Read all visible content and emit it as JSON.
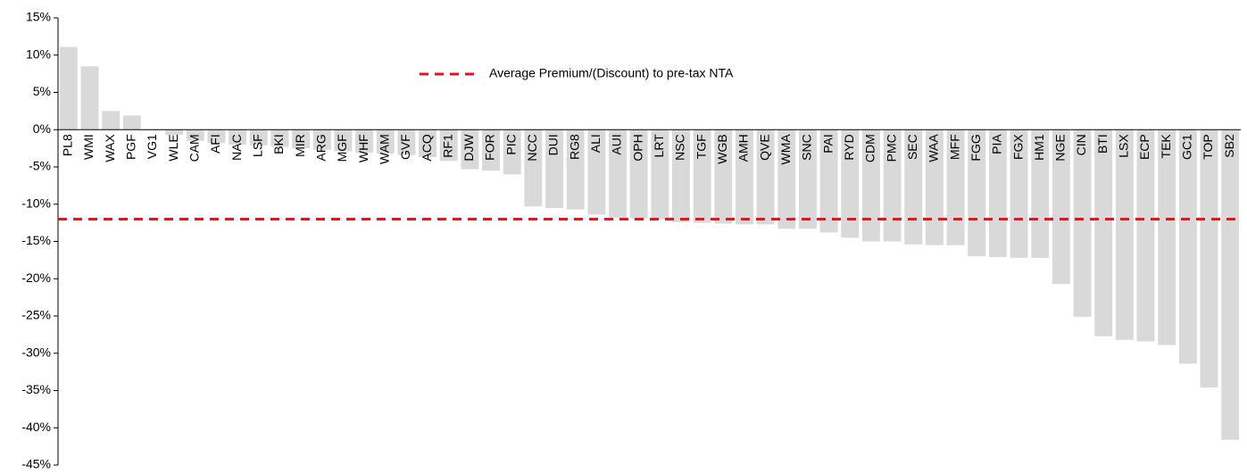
{
  "chart_data": {
    "type": "bar",
    "categories": [
      "PL8",
      "WMI",
      "WAX",
      "PGF",
      "VG1",
      "WLE",
      "CAM",
      "AFI",
      "NAC",
      "LSF",
      "BKI",
      "MIR",
      "ARG",
      "MGF",
      "WHF",
      "WAM",
      "GVF",
      "ACQ",
      "RF1",
      "DJW",
      "FOR",
      "PIC",
      "NCC",
      "DUI",
      "RG8",
      "ALI",
      "AUI",
      "OPH",
      "LRT",
      "NSC",
      "TGF",
      "WGB",
      "AMH",
      "QVE",
      "WMA",
      "SNC",
      "PAI",
      "RYD",
      "CDM",
      "PMC",
      "SEC",
      "WAA",
      "MFF",
      "FGG",
      "PIA",
      "FGX",
      "HM1",
      "NGE",
      "CIN",
      "BTI",
      "LSX",
      "ECP",
      "TEK",
      "GC1",
      "TOP",
      "SB2"
    ],
    "values": [
      11.1,
      8.5,
      2.5,
      1.9,
      -0.1,
      -0.7,
      -1.5,
      -1.8,
      -2.0,
      -2.1,
      -2.3,
      -2.5,
      -2.7,
      -2.9,
      -3.1,
      -3.2,
      -3.4,
      -3.7,
      -4.2,
      -5.3,
      -5.5,
      -6.0,
      -10.3,
      -10.5,
      -10.7,
      -11.4,
      -11.8,
      -11.9,
      -12.0,
      -12.4,
      -12.5,
      -12.6,
      -12.7,
      -12.7,
      -13.3,
      -13.3,
      -13.8,
      -14.5,
      -15.0,
      -15.0,
      -15.4,
      -15.5,
      -15.5,
      -17.0,
      -17.1,
      -17.2,
      -17.2,
      -20.7,
      -25.1,
      -27.7,
      -28.2,
      -28.4,
      -28.9,
      -31.4,
      -34.6,
      -41.6
    ],
    "color": "#d9d9d9",
    "average": {
      "name": "Average Premium/(Discount) to pre-tax NTA",
      "value": -12.0,
      "color": "#e8141c"
    },
    "ylim": [
      -45,
      15
    ],
    "yticks": [
      {
        "value": 15,
        "label": "15%"
      },
      {
        "value": 10,
        "label": "10%"
      },
      {
        "value": 5,
        "label": "5%"
      },
      {
        "value": 0,
        "label": "0%"
      },
      {
        "value": -5,
        "label": "-5%"
      },
      {
        "value": -10,
        "label": "-10%"
      },
      {
        "value": -15,
        "label": "-15%"
      },
      {
        "value": -20,
        "label": "-20%"
      },
      {
        "value": -25,
        "label": "-25%"
      },
      {
        "value": -30,
        "label": "-30%"
      },
      {
        "value": -35,
        "label": "-35%"
      },
      {
        "value": -40,
        "label": "-40%"
      },
      {
        "value": -45,
        "label": "-45%"
      }
    ],
    "grid": false
  }
}
